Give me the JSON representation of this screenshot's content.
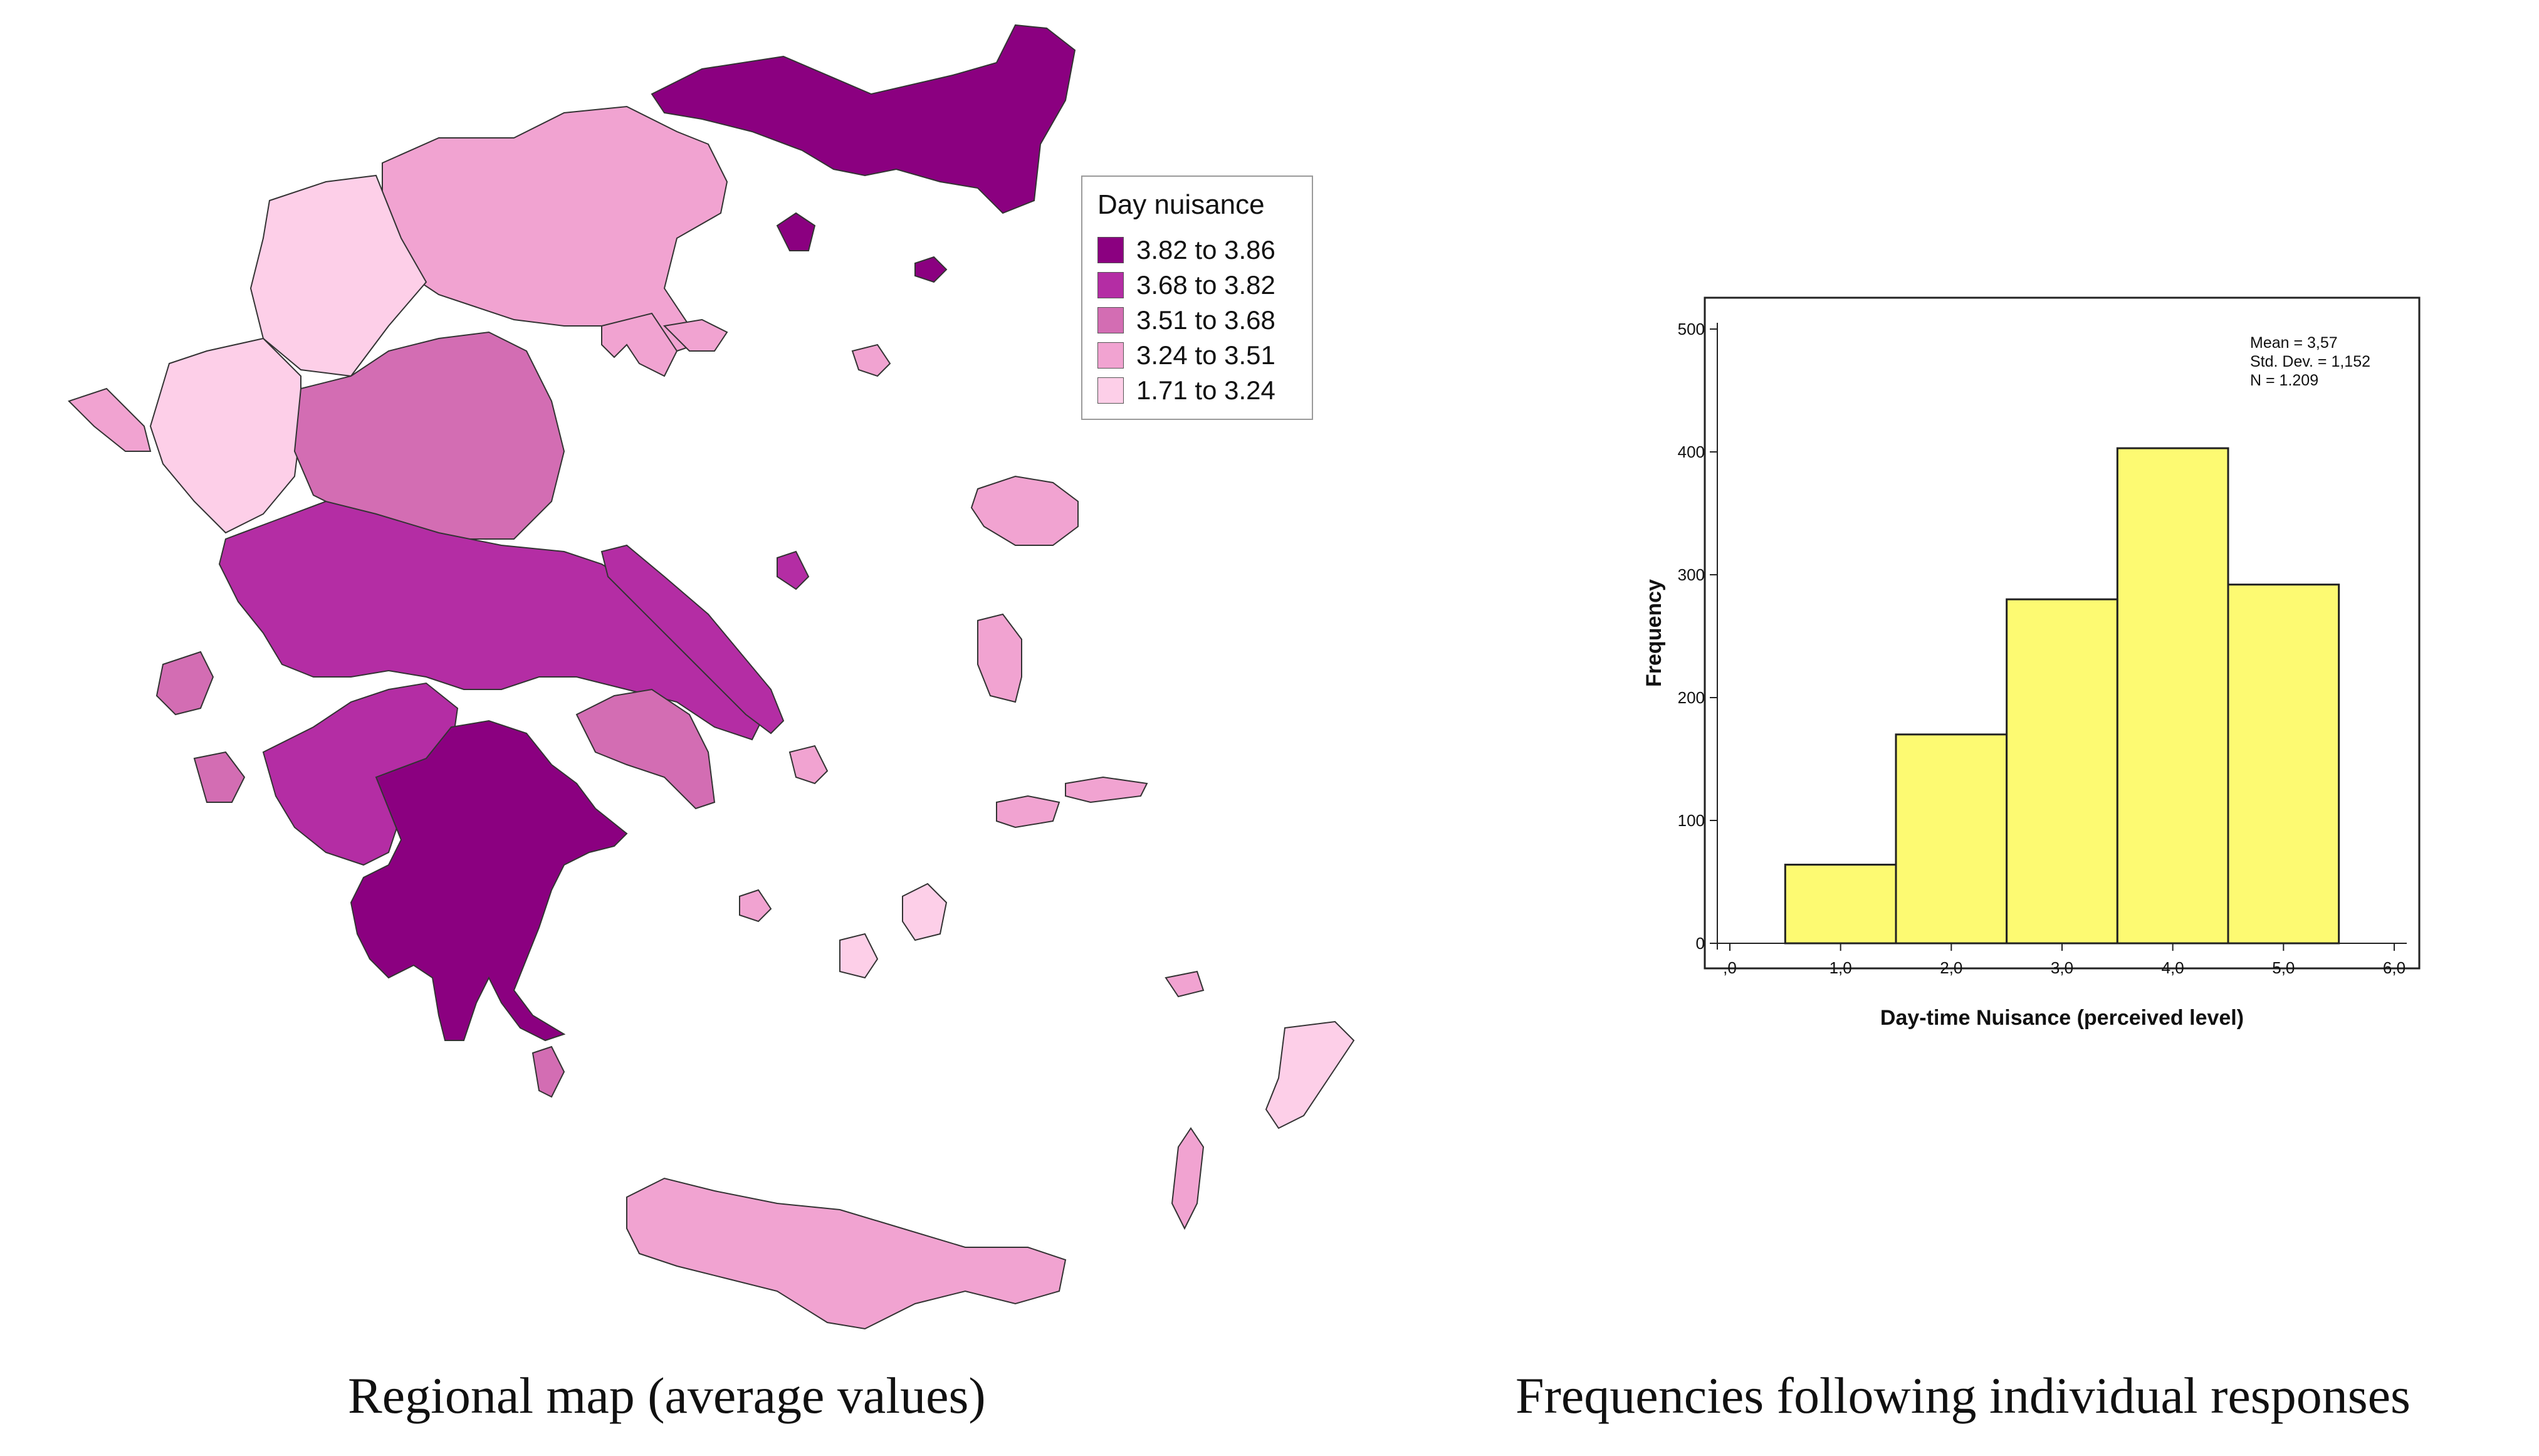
{
  "map": {
    "legend_title": "Day nuisance",
    "legend": [
      {
        "label": "3.82 to 3.86",
        "color": "#8b0080"
      },
      {
        "label": "3.68 to 3.82",
        "color": "#b42da4"
      },
      {
        "label": "3.51 to 3.68",
        "color": "#d36db3"
      },
      {
        "label": "3.24 to 3.51",
        "color": "#f1a3d1"
      },
      {
        "label": "1.71 to 3.24",
        "color": "#fdcfe8"
      }
    ],
    "caption": "Regional map (average values)"
  },
  "histogram": {
    "caption": "Frequencies following individual responses"
  },
  "chart_data": {
    "type": "bar",
    "categories": [
      "1,0",
      "2,0",
      "3,0",
      "4,0",
      "5,0"
    ],
    "values": [
      64,
      170,
      280,
      403,
      292
    ],
    "bar_color": "#fdfa72",
    "xlabel": "Day-time Nuisance (perceived level)",
    "ylabel": "Frequency",
    "xlim": [
      0,
      6
    ],
    "ylim": [
      0,
      500
    ],
    "x_tick_labels": [
      ",0",
      "1,0",
      "2,0",
      "3,0",
      "4,0",
      "5,0",
      "6,0"
    ],
    "y_tick_labels": [
      "0",
      "100",
      "200",
      "300",
      "400",
      "500"
    ],
    "stats": [
      "Mean = 3,57",
      "Std. Dev. = 1,152",
      "N = 1.209"
    ]
  }
}
